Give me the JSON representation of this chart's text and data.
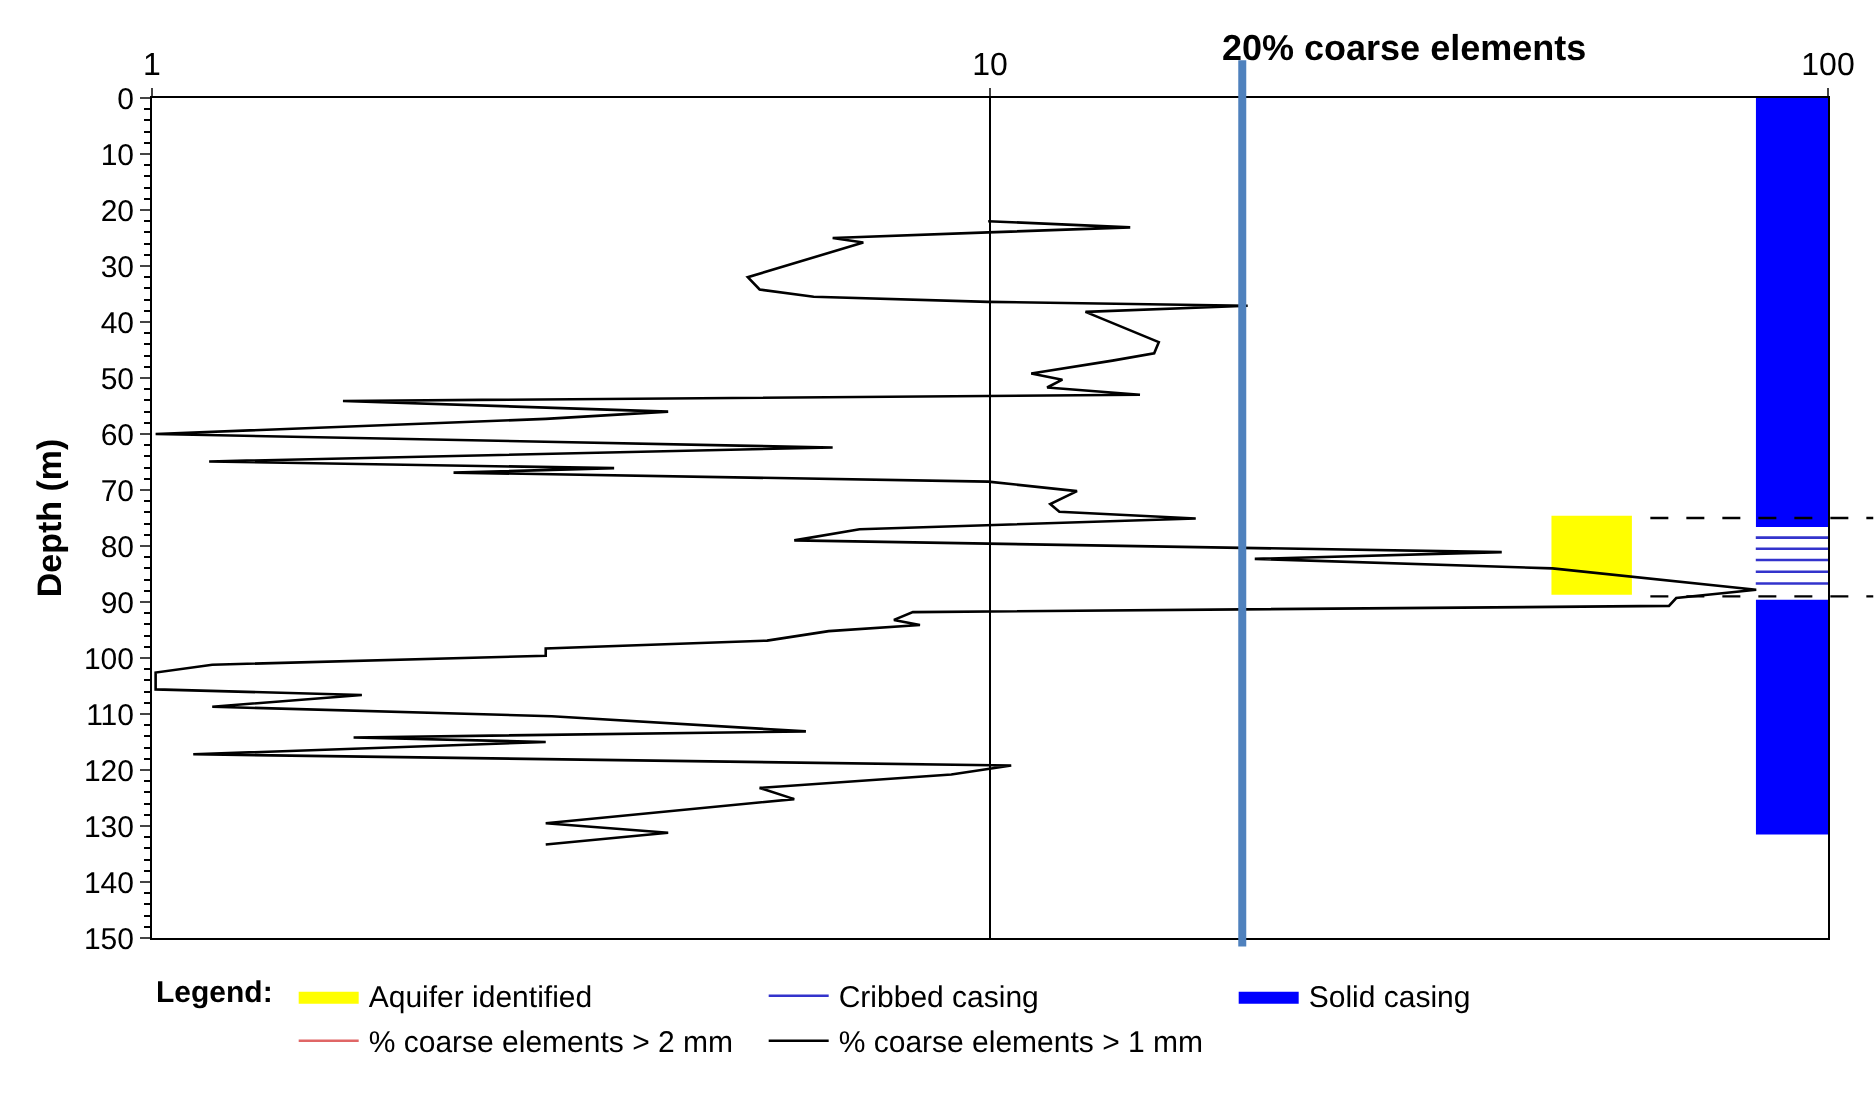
{
  "chart_data": {
    "type": "line",
    "ylabel": "Depth (m)",
    "legend_title": "Legend:",
    "xlim": [
      1,
      100
    ],
    "xticks": [
      1,
      10,
      100
    ],
    "log": "x",
    "ylim": [
      150,
      0
    ],
    "yticks": [
      0,
      10,
      20,
      30,
      40,
      50,
      60,
      70,
      80,
      90,
      100,
      110,
      120,
      130,
      140,
      150
    ],
    "legend": "bottom",
    "marker": "none",
    "line_style": "solid",
    "series": [
      {
        "name": "% coarse elements > 2 mm",
        "color": "#e06666",
        "x": [
          null
        ],
        "values": [
          null
        ]
      },
      {
        "name": "% coarse elements > 1 mm",
        "color": "#000000",
        "x": [
          9.95,
          14.7,
          9.95,
          6.49,
          7.06,
          5.14,
          5.31,
          6.16,
          9.95,
          20.3,
          13.0,
          15.9,
          15.7,
          14.0,
          11.2,
          12.2,
          11.7,
          15.1,
          1.69,
          4.13,
          2.95,
          1.01,
          6.49,
          1.17,
          3.56,
          2.29,
          9.95,
          12.7,
          11.8,
          12.1,
          17.6,
          6.99,
          5.84,
          40.8,
          20.7,
          46.9,
          82.1,
          65.9,
          64.6,
          8.09,
          7.68,
          8.25,
          6.42,
          5.42,
          2.95,
          2.95,
          1.18,
          1.01,
          1.01,
          1.78,
          1.18,
          3.0,
          6.03,
          1.74,
          2.95,
          1.12,
          10.6,
          8.99,
          5.31,
          5.84,
          2.95,
          4.13,
          2.95
        ],
        "values": [
          22.0,
          23.1,
          24.0,
          25.0,
          25.8,
          32.0,
          34.2,
          35.5,
          36.4,
          37.1,
          38.2,
          43.6,
          45.6,
          46.9,
          49.2,
          50.3,
          51.7,
          53.0,
          54.1,
          56.0,
          57.3,
          60.0,
          62.4,
          64.9,
          66.1,
          66.9,
          68.5,
          70.2,
          72.5,
          73.9,
          75.1,
          77.0,
          79.0,
          81.1,
          82.3,
          84.0,
          87.8,
          89.3,
          90.7,
          91.8,
          93.2,
          94.1,
          95.2,
          96.9,
          98.3,
          99.6,
          101.2,
          102.6,
          105.6,
          106.6,
          108.7,
          110.4,
          113.1,
          114.2,
          115.0,
          117.2,
          119.2,
          120.8,
          123.2,
          125.2,
          129.5,
          131.2,
          133.3
        ]
      },
      {
        "name": "Cribbed casing",
        "color": "#3333cc",
        "x": [
          82,
          100
        ],
        "values": [
          78.5,
          78.5
        ]
      },
      {
        "color": "#3333cc",
        "x": [
          82,
          100
        ],
        "values": [
          80.5,
          80.5
        ]
      },
      {
        "color": "#3333cc",
        "x": [
          82,
          100
        ],
        "values": [
          82.5,
          82.5
        ]
      },
      {
        "color": "#3333cc",
        "x": [
          82,
          100
        ],
        "values": [
          84.6,
          84.6
        ]
      },
      {
        "color": "#3333cc",
        "x": [
          82,
          100
        ],
        "values": [
          86.7,
          86.7
        ]
      }
    ],
    "ref_lines": [
      {
        "axis": "x",
        "value": 10,
        "color": "#000000",
        "line_style": "solid"
      },
      {
        "axis": "x",
        "value": 20,
        "label": "20% coarse elements",
        "color": "#4f81bd",
        "line_style": "solid"
      },
      {
        "axis": "y",
        "value": 75,
        "color": "#000000",
        "line_style": "dashed"
      },
      {
        "axis": "y",
        "value": 89,
        "color": "#000000",
        "line_style": "dashed"
      }
    ],
    "bands": [
      {
        "axis": "y",
        "from": 74.6,
        "to": 88.7,
        "label": "Aquifer identified",
        "color": "#ffff00"
      },
      {
        "axis": "y",
        "from": 0,
        "to": 76.6,
        "label": "Solid casing",
        "color": "#0000ff"
      },
      {
        "axis": "y",
        "from": 89.6,
        "to": 131.5,
        "color": "#0000ff"
      }
    ]
  }
}
